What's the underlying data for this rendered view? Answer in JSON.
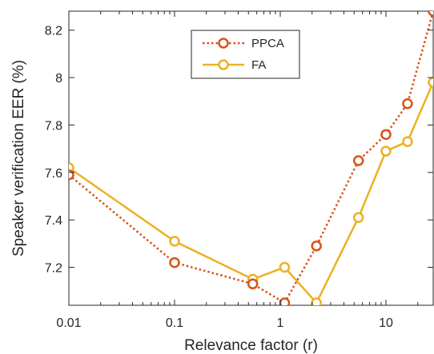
{
  "chart_data": {
    "type": "line",
    "xlabel": "Relevance factor (r)",
    "ylabel": "Speaker verification EER (%)",
    "x_scale": "log",
    "xlim": [
      0.01,
      28
    ],
    "ylim": [
      7.04,
      8.28
    ],
    "x_ticks": [
      0.01,
      0.1,
      1,
      10
    ],
    "x_tick_labels": [
      "0.01",
      "0.1",
      "1",
      "10"
    ],
    "y_ticks": [
      7.2,
      7.4,
      7.6,
      7.8,
      8.0,
      8.2
    ],
    "y_tick_labels": [
      "7.2",
      "7.4",
      "7.6",
      "7.8",
      "8",
      "8.2"
    ],
    "grid": false,
    "legend_position": "top-center",
    "series": [
      {
        "name": "PPCA",
        "color": "#D95319",
        "line_style": "dotted",
        "marker": "circle",
        "x": [
          0.01,
          0.1,
          0.55,
          1.1,
          2.2,
          5.5,
          10,
          16,
          28
        ],
        "y": [
          7.59,
          7.22,
          7.13,
          7.05,
          7.29,
          7.65,
          7.76,
          7.89,
          8.28
        ]
      },
      {
        "name": "FA",
        "color": "#EDB120",
        "line_style": "solid",
        "marker": "circle",
        "x": [
          0.01,
          0.1,
          0.55,
          1.1,
          2.2,
          5.5,
          10,
          16,
          28
        ],
        "y": [
          7.62,
          7.31,
          7.15,
          7.2,
          7.05,
          7.41,
          7.69,
          7.73,
          7.98
        ]
      }
    ]
  }
}
